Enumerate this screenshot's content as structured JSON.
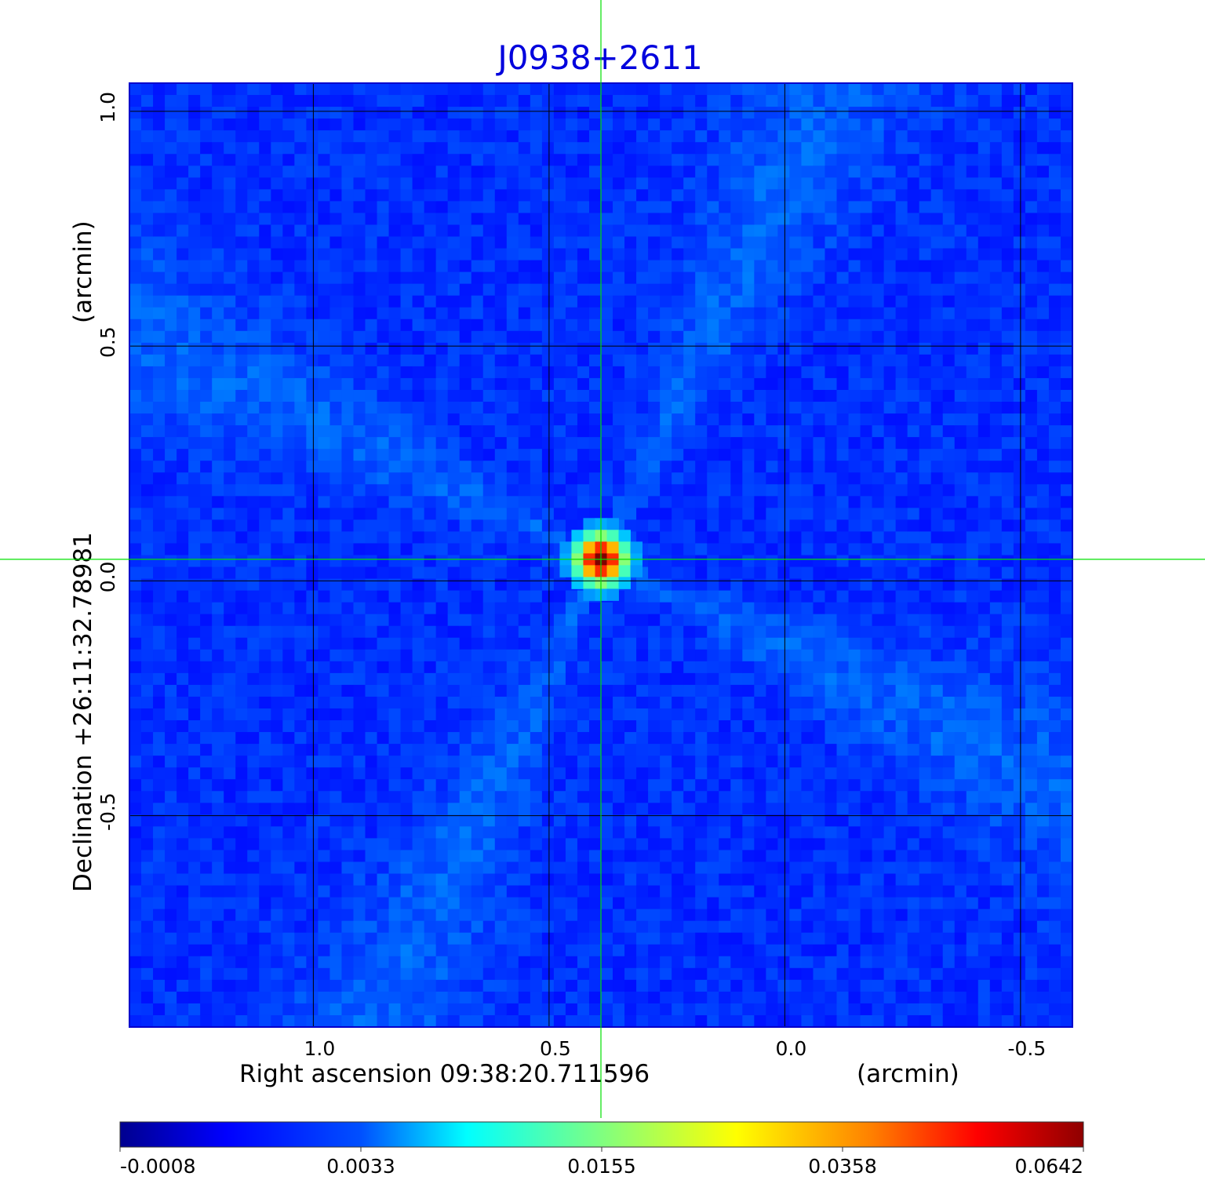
{
  "chart_data": {
    "type": "heatmap",
    "title": "J0938+2611",
    "xlabel": "Right ascension  09:38:20.711596",
    "xunit": "(arcmin)",
    "ylabel": "Declination  +26:11:32.78981",
    "yunit": "(arcmin)",
    "xlim": [
      1.39,
      -0.61
    ],
    "ylim": [
      -0.95,
      1.06
    ],
    "xticks": [
      1.0,
      0.5,
      0.0,
      -0.5
    ],
    "xtick_labels": [
      "1.0",
      "0.5",
      "0.0",
      "-0.5"
    ],
    "yticks": [
      -0.5,
      0.0,
      0.5,
      1.0
    ],
    "ytick_labels": [
      "-0.5",
      "0.0",
      "0.5",
      "1.0"
    ],
    "grid": true,
    "crosshair": {
      "x": 0.39,
      "y": 0.046,
      "color": "#00e000"
    },
    "source_peak": {
      "x": 0.39,
      "y": 0.046,
      "value": 0.0642
    },
    "colormap": "jet",
    "colorbar": {
      "ticks": [
        -0.0008,
        0.0033,
        0.0155,
        0.0358,
        0.0642
      ],
      "tick_labels": [
        "-0.0008",
        "0.0033",
        "0.0155",
        "0.0358",
        "0.0642"
      ],
      "range": [
        -0.0008,
        0.0642
      ]
    }
  },
  "colors": {
    "title": "#0000dd",
    "grid": "#000000",
    "frame": "#0000cc",
    "crosshair": "#00e000"
  }
}
